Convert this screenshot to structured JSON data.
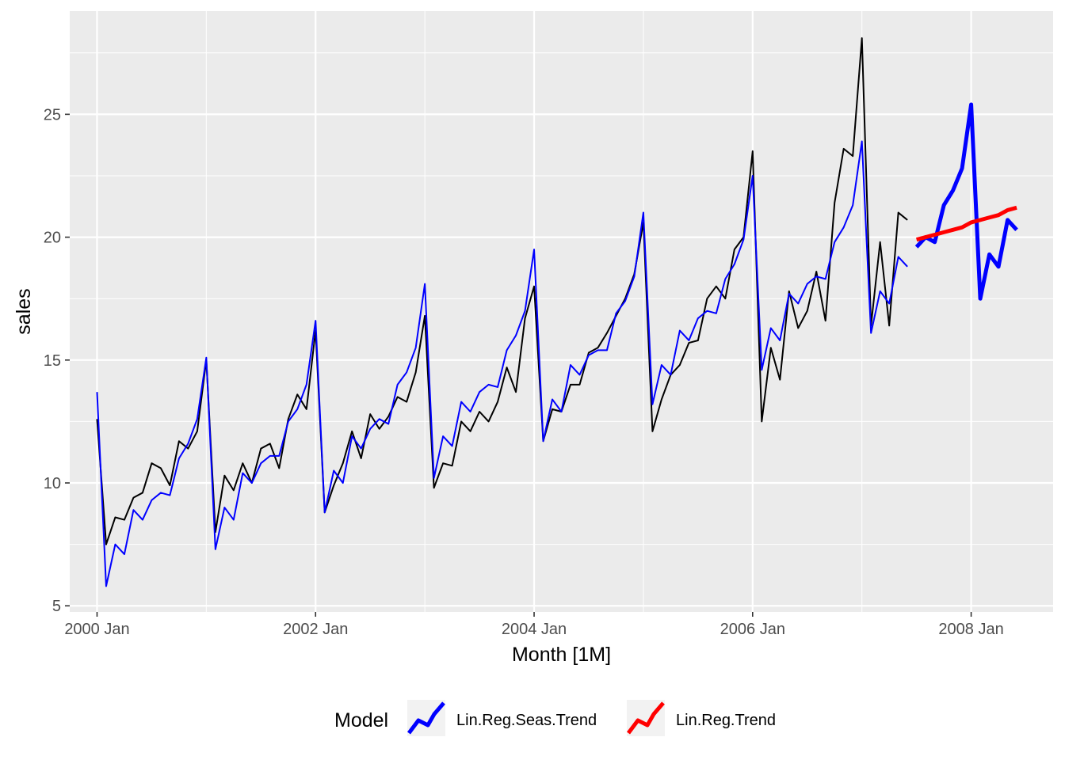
{
  "chart_data": {
    "type": "line",
    "xlabel": "Month [1M]",
    "ylabel": "sales",
    "x_start": "2000 Jan",
    "xlim": [
      "1999 Oct",
      "2008 Oct"
    ],
    "ylim": [
      4.75,
      29.2
    ],
    "x_ticks": [
      "2000 Jan",
      "2002 Jan",
      "2004 Jan",
      "2006 Jan",
      "2008 Jan"
    ],
    "y_ticks": [
      5,
      10,
      15,
      20,
      25
    ],
    "grid": true,
    "background": "#EBEBEB",
    "legend_position": "bottom",
    "legend_title": "Model",
    "series": [
      {
        "color": "#000000",
        "start": "2000 Jan",
        "values": [
          12.6,
          7.5,
          8.6,
          8.5,
          9.4,
          9.6,
          10.8,
          10.6,
          9.9,
          11.7,
          11.4,
          12.1,
          15.0,
          8.0,
          10.3,
          9.7,
          10.8,
          10.0,
          11.4,
          11.6,
          10.6,
          12.6,
          13.6,
          13.0,
          16.2,
          8.8,
          9.9,
          10.8,
          12.1,
          11.0,
          12.8,
          12.2,
          12.7,
          13.5,
          13.3,
          14.5,
          16.8,
          9.8,
          10.8,
          10.7,
          12.5,
          12.1,
          12.9,
          12.5,
          13.3,
          14.7,
          13.7,
          16.7,
          18.0,
          11.7,
          13.0,
          12.9,
          14.0,
          14.0,
          15.3,
          15.5,
          16.1,
          16.8,
          17.5,
          18.5,
          20.6,
          12.1,
          13.4,
          14.4,
          14.8,
          15.7,
          15.8,
          17.5,
          18.0,
          17.5,
          19.5,
          20.0,
          23.5,
          12.5,
          15.5,
          14.2,
          17.8,
          16.3,
          17.0,
          18.6,
          16.6,
          21.4,
          23.6,
          23.3,
          28.1,
          16.4,
          19.8,
          16.4,
          21.0,
          20.7
        ]
      },
      {
        "color": "#0000FF",
        "start": "2000 Jan",
        "values": [
          13.7,
          5.8,
          7.5,
          7.1,
          8.9,
          8.5,
          9.3,
          9.6,
          9.5,
          11.0,
          11.6,
          12.6,
          15.1,
          7.3,
          9.0,
          8.5,
          10.4,
          10.0,
          10.8,
          11.1,
          11.1,
          12.5,
          13.0,
          14.0,
          16.6,
          8.8,
          10.5,
          10.0,
          11.9,
          11.4,
          12.2,
          12.6,
          12.4,
          14.0,
          14.5,
          15.5,
          18.1,
          10.2,
          11.9,
          11.5,
          13.3,
          12.9,
          13.7,
          14.0,
          13.9,
          15.4,
          16.0,
          17.0,
          19.5,
          11.7,
          13.4,
          12.9,
          14.8,
          14.4,
          15.2,
          15.4,
          15.4,
          16.9,
          17.4,
          18.4,
          21.0,
          13.2,
          14.8,
          14.4,
          16.2,
          15.8,
          16.7,
          17.0,
          16.9,
          18.3,
          18.9,
          19.9,
          22.5,
          14.6,
          16.3,
          15.8,
          17.7,
          17.3,
          18.1,
          18.4,
          18.3,
          19.8,
          20.4,
          21.3,
          23.9,
          16.1,
          17.8,
          17.3,
          19.2,
          18.8
        ]
      }
    ],
    "forecasts": [
      {
        "name": "Lin.Reg.Seas.Trend",
        "color": "#0000FF",
        "start": "2007 Jul",
        "values": [
          19.6,
          20.0,
          19.8,
          21.3,
          21.9,
          22.8,
          25.4,
          17.5,
          19.3,
          18.8,
          20.7,
          20.3
        ]
      },
      {
        "name": "Lin.Reg.Trend",
        "color": "#FF0000",
        "start": "2007 Jul",
        "values": [
          19.9,
          20.0,
          20.1,
          20.2,
          20.3,
          20.4,
          20.6,
          20.7,
          20.8,
          20.9,
          21.1,
          21.2
        ]
      }
    ]
  }
}
